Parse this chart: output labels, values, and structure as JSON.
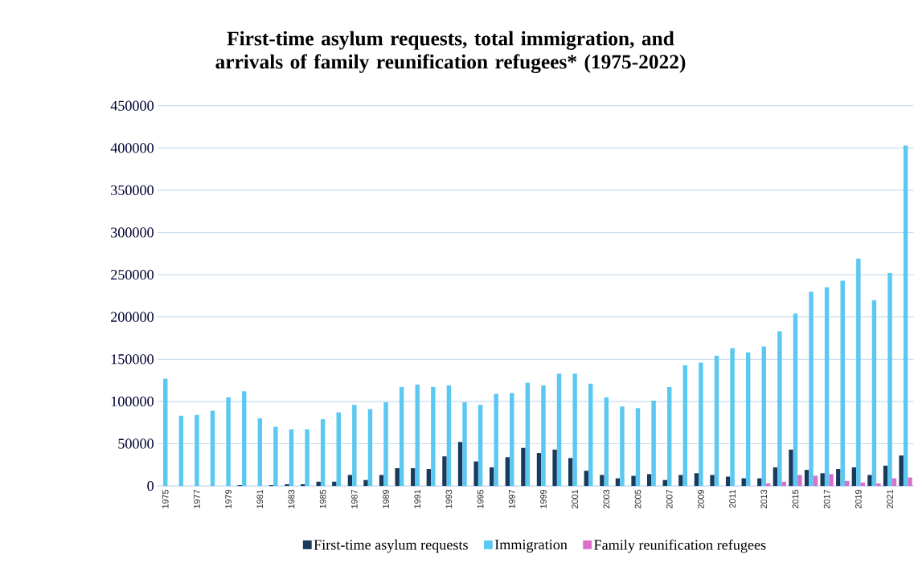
{
  "chart_data": {
    "type": "bar",
    "title": "First-time asylum requests, total immigration, and arrivals of family reunification refugees* (1975-2022)",
    "categories": [
      "1975",
      null,
      "1977",
      null,
      "1979",
      null,
      "1981",
      null,
      "1983",
      null,
      "1985",
      null,
      "1987",
      null,
      "1989",
      null,
      "1991",
      null,
      "1993",
      null,
      "1995",
      null,
      "1997",
      null,
      "1999",
      null,
      "2001",
      null,
      "2003",
      null,
      "2005",
      null,
      "2007",
      null,
      "2009",
      null,
      "2011",
      null,
      "2013",
      null,
      "2015",
      null,
      "2017",
      null,
      "2019",
      null,
      "2021",
      null
    ],
    "series": [
      {
        "name": "First-time asylum requests",
        "color": "#1a3a5c",
        "values": [
          null,
          null,
          null,
          null,
          null,
          1000,
          null,
          1000,
          2000,
          2000,
          5000,
          5000,
          13000,
          7000,
          13000,
          21000,
          21000,
          20000,
          35000,
          52000,
          29000,
          22000,
          34000,
          45000,
          39000,
          43000,
          33000,
          18000,
          13000,
          9000,
          12000,
          14000,
          7000,
          13000,
          15000,
          13000,
          11000,
          9000,
          9000,
          22000,
          43000,
          19000,
          15000,
          20000,
          22000,
          13000,
          24000,
          36000
        ]
      },
      {
        "name": "Immigration",
        "color": "#5bc8f2",
        "values": [
          127000,
          83000,
          84000,
          89000,
          105000,
          112000,
          80000,
          70000,
          67000,
          67000,
          79000,
          87000,
          96000,
          91000,
          99000,
          117000,
          120000,
          117000,
          119000,
          99000,
          96000,
          109000,
          110000,
          122000,
          119000,
          133000,
          133000,
          121000,
          105000,
          94000,
          92000,
          101000,
          117000,
          143000,
          146000,
          154000,
          163000,
          158000,
          165000,
          183000,
          204000,
          230000,
          235000,
          243000,
          269000,
          220000,
          252000,
          403000
        ]
      },
      {
        "name": "Family reunification refugees",
        "color": "#d96fcb",
        "values": [
          null,
          null,
          null,
          null,
          null,
          null,
          null,
          null,
          null,
          null,
          null,
          null,
          null,
          null,
          null,
          null,
          null,
          null,
          null,
          null,
          null,
          null,
          null,
          null,
          null,
          null,
          null,
          null,
          null,
          null,
          null,
          null,
          null,
          null,
          null,
          null,
          null,
          null,
          3000,
          5000,
          13000,
          12000,
          14000,
          6000,
          4000,
          3000,
          9000,
          10000
        ]
      }
    ],
    "ylim": [
      0,
      450000
    ],
    "yticks": [
      0,
      50000,
      100000,
      150000,
      200000,
      250000,
      300000,
      350000,
      400000,
      450000
    ],
    "grid": "y",
    "legend": "bottom"
  }
}
